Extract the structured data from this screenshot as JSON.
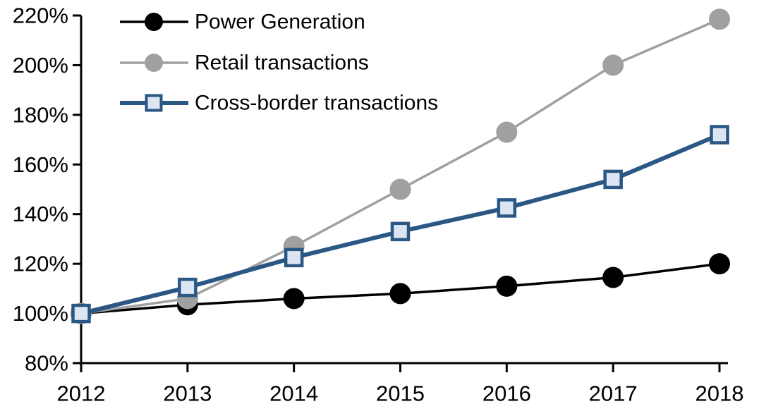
{
  "chart_data": {
    "type": "line",
    "title": "",
    "xlabel": "",
    "ylabel": "",
    "x": [
      "2012",
      "2013",
      "2014",
      "2015",
      "2016",
      "2017",
      "2018"
    ],
    "series": [
      {
        "name": "Power Generation",
        "values": [
          100,
          103.5,
          106,
          108,
          111,
          114.5,
          120
        ],
        "color": "#000000",
        "marker": "circle",
        "marker_fill": "#000000",
        "line_width": 3.5
      },
      {
        "name": "Retail transactions",
        "values": [
          100,
          106,
          127,
          150,
          173,
          200,
          218.5
        ],
        "color": "#a0a0a0",
        "marker": "circle",
        "marker_fill": "#a0a0a0",
        "line_width": 3.5
      },
      {
        "name": "Cross-border transactions",
        "values": [
          100,
          110.5,
          122.5,
          133,
          142.5,
          154,
          172
        ],
        "color": "#2a5784",
        "marker": "square",
        "marker_fill": "#dce6f2",
        "line_width": 6
      }
    ],
    "ylim": [
      80,
      220
    ],
    "ytick_step": 20,
    "ytick_labels": [
      "80%",
      "100%",
      "120%",
      "140%",
      "160%",
      "180%",
      "200%",
      "220%"
    ],
    "xtick_labels": [
      "2012",
      "2013",
      "2014",
      "2015",
      "2016",
      "2017",
      "2018"
    ],
    "grid": false,
    "legend_position": "top-left-inside",
    "axis_color": "#000000",
    "background_color": "#ffffff"
  }
}
